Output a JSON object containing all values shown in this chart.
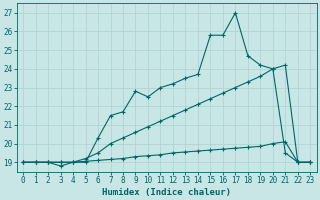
{
  "title": "",
  "xlabel": "Humidex (Indice chaleur)",
  "xlim": [
    -0.5,
    23.5
  ],
  "ylim": [
    18.5,
    27.5
  ],
  "xticks": [
    0,
    1,
    2,
    3,
    4,
    5,
    6,
    7,
    8,
    9,
    10,
    11,
    12,
    13,
    14,
    15,
    16,
    17,
    18,
    19,
    20,
    21,
    22,
    23
  ],
  "yticks": [
    19,
    20,
    21,
    22,
    23,
    24,
    25,
    26,
    27
  ],
  "bg_color": "#c8e6e6",
  "line_color": "#006666",
  "grid_color": "#b0d4d4",
  "line1_x": [
    0,
    1,
    2,
    3,
    4,
    5,
    6,
    7,
    8,
    9,
    10,
    11,
    12,
    13,
    14,
    15,
    16,
    17,
    18,
    19,
    20,
    21,
    22,
    23
  ],
  "line1_y": [
    19.0,
    19.0,
    19.0,
    18.8,
    19.0,
    19.0,
    20.3,
    21.5,
    21.7,
    22.8,
    22.5,
    23.0,
    23.2,
    23.5,
    23.7,
    25.8,
    25.8,
    27.0,
    24.7,
    24.2,
    24.0,
    19.5,
    19.0,
    19.0
  ],
  "line2_x": [
    0,
    1,
    2,
    3,
    4,
    5,
    6,
    7,
    8,
    9,
    10,
    11,
    12,
    13,
    14,
    15,
    16,
    17,
    18,
    19,
    20,
    21,
    22,
    23
  ],
  "line2_y": [
    19.0,
    19.0,
    19.0,
    19.0,
    19.0,
    19.2,
    19.5,
    20.0,
    20.3,
    20.6,
    20.9,
    21.2,
    21.5,
    21.8,
    22.1,
    22.4,
    22.7,
    23.0,
    23.3,
    23.6,
    24.0,
    24.2,
    19.0,
    19.0
  ],
  "line3_x": [
    0,
    1,
    2,
    3,
    4,
    5,
    6,
    7,
    8,
    9,
    10,
    11,
    12,
    13,
    14,
    15,
    16,
    17,
    18,
    19,
    20,
    21,
    22,
    23
  ],
  "line3_y": [
    19.0,
    19.0,
    19.0,
    19.0,
    19.0,
    19.05,
    19.1,
    19.15,
    19.2,
    19.3,
    19.35,
    19.4,
    19.5,
    19.55,
    19.6,
    19.65,
    19.7,
    19.75,
    19.8,
    19.85,
    20.0,
    20.1,
    19.0,
    19.0
  ]
}
